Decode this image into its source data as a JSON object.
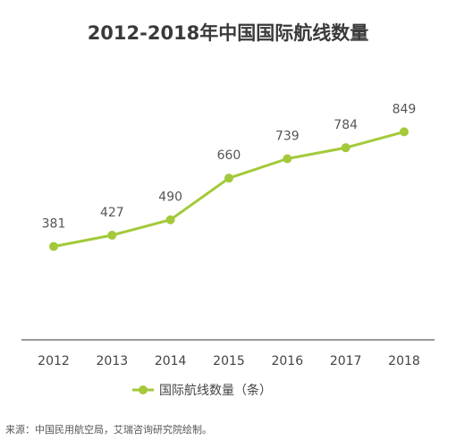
{
  "chart_data": {
    "type": "line",
    "title": "2012-2018年中国国际航线数量",
    "xlabel": "",
    "ylabel": "",
    "categories": [
      "2012",
      "2013",
      "2014",
      "2015",
      "2016",
      "2017",
      "2018"
    ],
    "series": [
      {
        "name": "国际航线数量（条）",
        "values": [
          381,
          427,
          490,
          660,
          739,
          784,
          849
        ],
        "color": "#a3c93a"
      }
    ],
    "ylim": [
      0,
      900
    ],
    "grid": false,
    "legend": "bottom"
  },
  "source_text": "来源：中国民用航空局，艾瑞咨询研究院绘制。"
}
